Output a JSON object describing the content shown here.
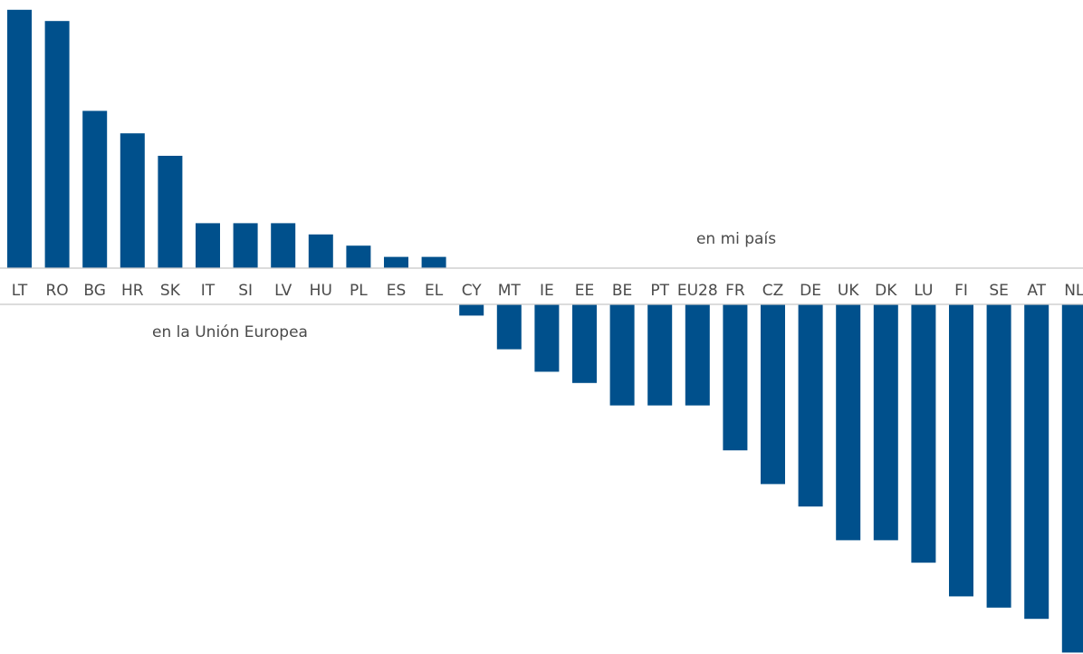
{
  "chart_data": {
    "type": "bar",
    "categories": [
      "LT",
      "RO",
      "BG",
      "HR",
      "SK",
      "IT",
      "SI",
      "LV",
      "HU",
      "PL",
      "ES",
      "EL",
      "CY",
      "MT",
      "IE",
      "EE",
      "BE",
      "PT",
      "EU28",
      "FR",
      "CZ",
      "DE",
      "UK",
      "DK",
      "LU",
      "FI",
      "SE",
      "AT",
      "NL"
    ],
    "values": [
      23,
      22,
      14,
      12,
      10,
      4,
      4,
      4,
      3,
      2,
      1,
      1,
      -1,
      -4,
      -6,
      -7,
      -9,
      -9,
      -9,
      -13,
      -16,
      -18,
      -21,
      -21,
      -23,
      -26,
      -27,
      -28,
      -31
    ],
    "annotations": {
      "positive_side": "en mi país",
      "negative_side": "en la Unión Europea"
    },
    "grid": false,
    "color": "#00508c"
  }
}
